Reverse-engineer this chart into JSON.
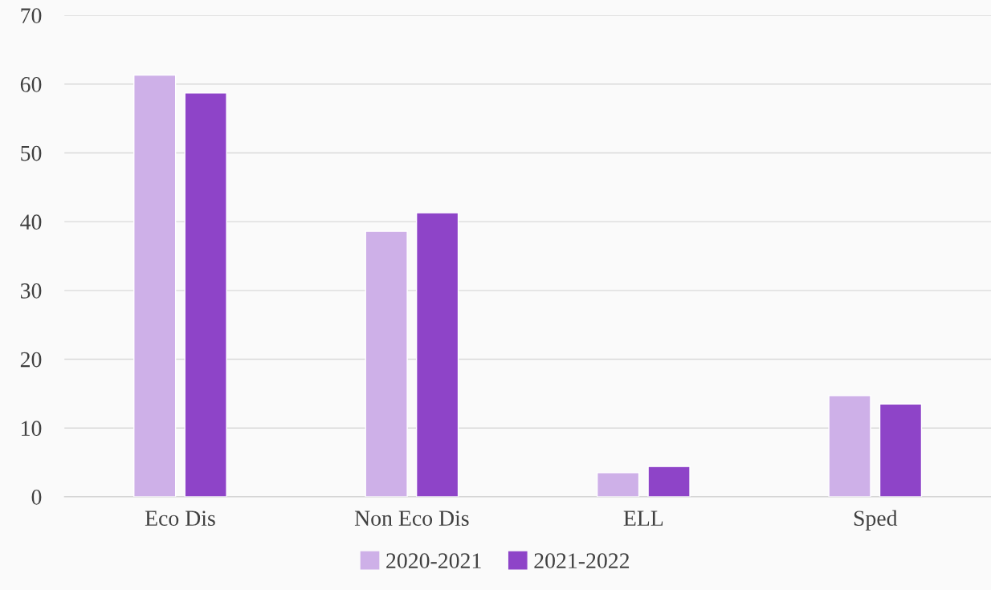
{
  "chart_data": {
    "type": "bar",
    "categories": [
      "Eco Dis",
      "Non Eco Dis",
      "ELL",
      "Sped"
    ],
    "series": [
      {
        "name": "2020-2021",
        "color": "#ceb0e8",
        "values": [
          61.3,
          38.6,
          3.5,
          14.7
        ]
      },
      {
        "name": "2021-2022",
        "color": "#8e44c8",
        "values": [
          58.7,
          41.3,
          4.4,
          13.5
        ]
      }
    ],
    "ylim": [
      0,
      70
    ],
    "yticks": [
      0,
      10,
      20,
      30,
      40,
      50,
      60,
      70
    ],
    "grid": "y",
    "legend": "bottom"
  }
}
